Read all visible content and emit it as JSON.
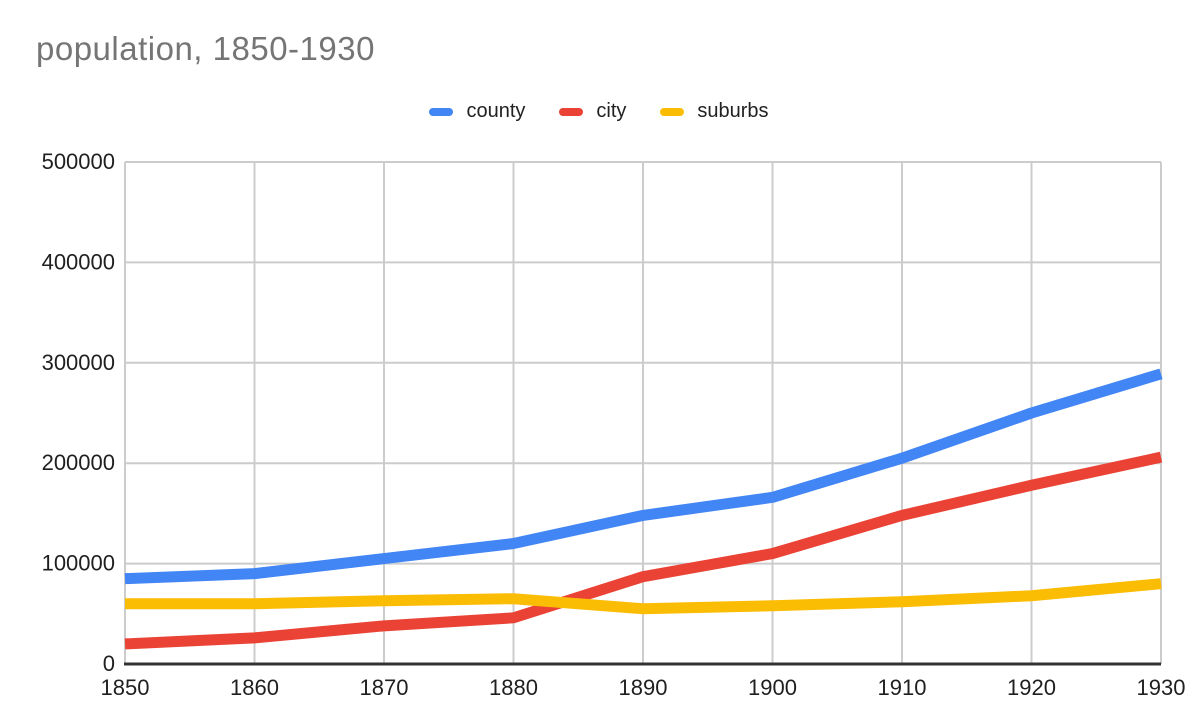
{
  "title": {
    "text": "population, 1850-1930",
    "color": "#757575"
  },
  "legend": {
    "items": [
      {
        "label": "county",
        "color": "#4285F4"
      },
      {
        "label": "city",
        "color": "#EA4335"
      },
      {
        "label": "suburbs",
        "color": "#FBBC04"
      }
    ]
  },
  "chart_data": {
    "type": "line",
    "title": "population, 1850-1930",
    "x": [
      1850,
      1860,
      1870,
      1880,
      1890,
      1900,
      1910,
      1920,
      1930
    ],
    "series": [
      {
        "name": "county",
        "color": "#4285F4",
        "values": [
          85000,
          90000,
          105000,
          120000,
          148000,
          166000,
          205000,
          250000,
          289000
        ]
      },
      {
        "name": "city",
        "color": "#EA4335",
        "values": [
          20000,
          26000,
          38000,
          46000,
          87000,
          110000,
          148000,
          178000,
          206000
        ]
      },
      {
        "name": "suburbs",
        "color": "#FBBC04",
        "values": [
          60000,
          60000,
          63000,
          65000,
          55000,
          58000,
          62000,
          68000,
          80000
        ]
      }
    ],
    "ylim": [
      0,
      500000
    ],
    "y_ticks": [
      0,
      100000,
      200000,
      300000,
      400000,
      500000
    ],
    "grid": true,
    "legend_position": "top",
    "styles": {
      "grid_color": "#cccccc",
      "axis_color": "#333333",
      "tick_label_color": "#1f1f1f",
      "line_width": 11
    }
  }
}
